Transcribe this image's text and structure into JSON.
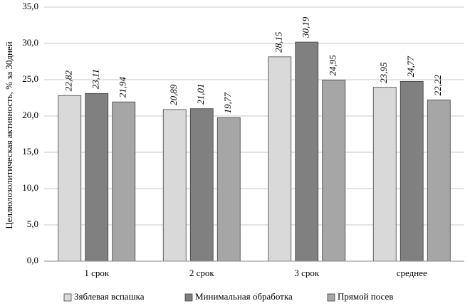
{
  "chart_data": {
    "type": "bar",
    "y_label": "Целлюлозолитическая активность, % за 30дней",
    "categories": [
      "1 срок",
      "2 срок",
      "3 срок",
      "среднее"
    ],
    "series": [
      {
        "name": "Зяблевая вспашка",
        "color": "#d9d9d9",
        "values": [
          22.82,
          20.89,
          28.15,
          23.95
        ],
        "value_labels": [
          "22,82",
          "20,89",
          "28,15",
          "23,95"
        ]
      },
      {
        "name": "Минимальная обработка",
        "color": "#808080",
        "values": [
          23.11,
          21.01,
          30.19,
          24.77
        ],
        "value_labels": [
          "23,11",
          "21,01",
          "30,19",
          "24,77"
        ]
      },
      {
        "name": "Прямой посев",
        "color": "#a6a6a6",
        "values": [
          21.94,
          19.77,
          24.95,
          22.22
        ],
        "value_labels": [
          "21,94",
          "19,77",
          "24,95",
          "22,22"
        ]
      }
    ],
    "ylim": [
      0,
      35
    ],
    "yticks": [
      {
        "value": 0,
        "label": "0,0"
      },
      {
        "value": 5,
        "label": "5,0"
      },
      {
        "value": 10,
        "label": "10,0"
      },
      {
        "value": 15,
        "label": "15,0"
      },
      {
        "value": 20,
        "label": "20,0"
      },
      {
        "value": 25,
        "label": "25,0"
      },
      {
        "value": 30,
        "label": "30,0"
      },
      {
        "value": 35,
        "label": "35,0"
      }
    ],
    "grid": true,
    "legend": "bottom"
  }
}
